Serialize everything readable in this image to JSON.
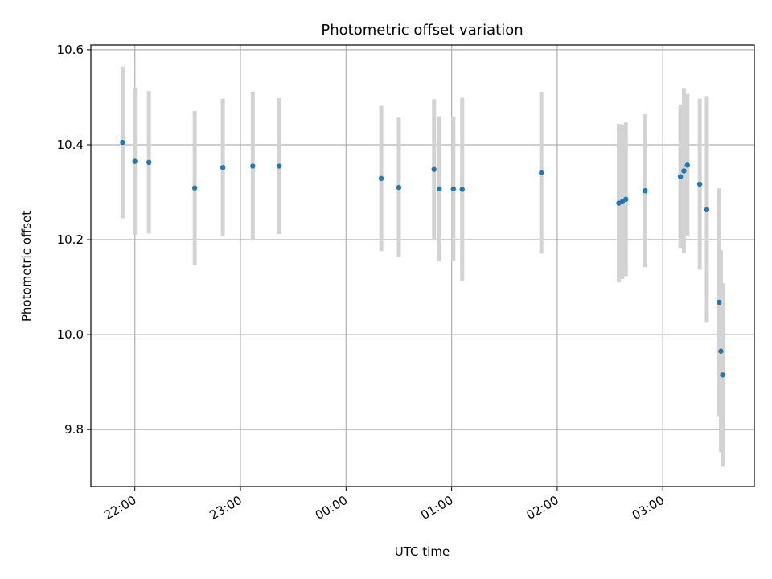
{
  "chart_data": {
    "type": "scatter",
    "title": "Photometric offset variation",
    "xlabel": "UTC time",
    "ylabel": "Photometric offset",
    "x_ticks": [
      "22:00",
      "23:00",
      "00:00",
      "01:00",
      "02:00",
      "03:00"
    ],
    "y_ticks": [
      "9.8",
      "10.0",
      "10.2",
      "10.4",
      "10.6"
    ],
    "x_ticks_hours": [
      22,
      23,
      24,
      25,
      26,
      27
    ],
    "y_ticks_values": [
      9.8,
      10.0,
      10.2,
      10.4,
      10.6
    ],
    "xlim": [
      "21:35",
      "03:52"
    ],
    "ylim": [
      9.68,
      10.61
    ],
    "grid": true,
    "colors": {
      "point": "#1f77b4",
      "errorbar": "#d3d3d3",
      "grid": "#b0b0b0"
    },
    "series": [
      {
        "x": [
          "21:53",
          "22:00",
          "22:08",
          "22:34",
          "22:50",
          "23:07",
          "23:22",
          "00:20",
          "00:30",
          "00:50",
          "00:53",
          "01:01",
          "01:06",
          "01:51",
          "02:35",
          "02:37",
          "02:39",
          "02:50",
          "03:10",
          "03:12",
          "03:14",
          "03:21",
          "03:25",
          "03:32",
          "03:33",
          "03:34"
        ],
        "y": [
          10.405,
          10.365,
          10.363,
          10.309,
          10.352,
          10.355,
          10.355,
          10.329,
          10.31,
          10.348,
          10.307,
          10.307,
          10.306,
          10.341,
          10.277,
          10.28,
          10.285,
          10.303,
          10.333,
          10.345,
          10.357,
          10.317,
          10.263,
          10.068,
          9.965,
          9.915
        ],
        "yerr": [
          0.16,
          0.155,
          0.15,
          0.162,
          0.145,
          0.157,
          0.143,
          0.153,
          0.147,
          0.148,
          0.153,
          0.152,
          0.193,
          0.17,
          0.167,
          0.163,
          0.162,
          0.161,
          0.152,
          0.173,
          0.15,
          0.18,
          0.238,
          0.24,
          0.213,
          0.193
        ]
      }
    ]
  }
}
